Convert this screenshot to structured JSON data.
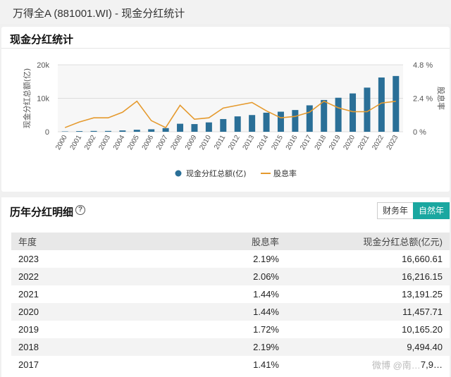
{
  "window": {
    "title": "万得全A (881001.WI) - 现金分红统计"
  },
  "chart_card": {
    "title": "现金分红统计"
  },
  "chart_data": {
    "type": "bar+line",
    "categories": [
      "2000",
      "2001",
      "2002",
      "2003",
      "2004",
      "2005",
      "2006",
      "2007",
      "2008",
      "2009",
      "2010",
      "2011",
      "2012",
      "2013",
      "2014",
      "2015",
      "2016",
      "2017",
      "2018",
      "2019",
      "2020",
      "2021",
      "2022",
      "2023"
    ],
    "series": [
      {
        "name": "现金分红总额(亿)",
        "type": "bar",
        "axis": "left",
        "color": "#2a6f97",
        "values": [
          100,
          200,
          250,
          250,
          400,
          600,
          750,
          1100,
          2400,
          2300,
          2800,
          3800,
          4600,
          5000,
          5700,
          6000,
          6500,
          7900,
          9494.4,
          10165.2,
          11457.71,
          13191.25,
          16216.15,
          16660.61
        ]
      },
      {
        "name": "股息率",
        "type": "line",
        "axis": "right",
        "color": "#e59a2e",
        "values": [
          0.3,
          0.7,
          1.0,
          1.0,
          1.4,
          2.19,
          0.8,
          0.3,
          1.9,
          0.9,
          1.0,
          1.7,
          1.9,
          2.1,
          1.5,
          1.0,
          1.1,
          1.41,
          2.19,
          1.72,
          1.44,
          1.44,
          2.06,
          2.19
        ]
      }
    ],
    "ylabel": "现金分红总额(亿)",
    "y2label": "股息率",
    "ylim": [
      0,
      20000
    ],
    "y2lim": [
      0,
      4.8
    ],
    "yticks": [
      "0",
      "10k",
      "20k"
    ],
    "y2ticks": [
      "0 %",
      "2.4 %",
      "4.8 %"
    ],
    "grid": true,
    "legend": "bottom"
  },
  "detail": {
    "title": "历年分红明细",
    "help_icon": "?",
    "toggle": {
      "fiscal": "财务年",
      "natural": "自然年"
    },
    "columns": {
      "year": "年度",
      "yield": "股息率",
      "amount": "现金分红总额(亿元)"
    },
    "rows": [
      {
        "year": "2023",
        "yield": "2.19%",
        "amount": "16,660.61"
      },
      {
        "year": "2022",
        "yield": "2.06%",
        "amount": "16,216.15"
      },
      {
        "year": "2021",
        "yield": "1.44%",
        "amount": "13,191.25"
      },
      {
        "year": "2020",
        "yield": "1.44%",
        "amount": "11,457.71"
      },
      {
        "year": "2019",
        "yield": "1.72%",
        "amount": "10,165.20"
      },
      {
        "year": "2018",
        "yield": "2.19%",
        "amount": "9,494.40"
      },
      {
        "year": "2017",
        "yield": "1.41%",
        "amount": "7,9…"
      }
    ]
  },
  "watermark": "微博 @南…"
}
